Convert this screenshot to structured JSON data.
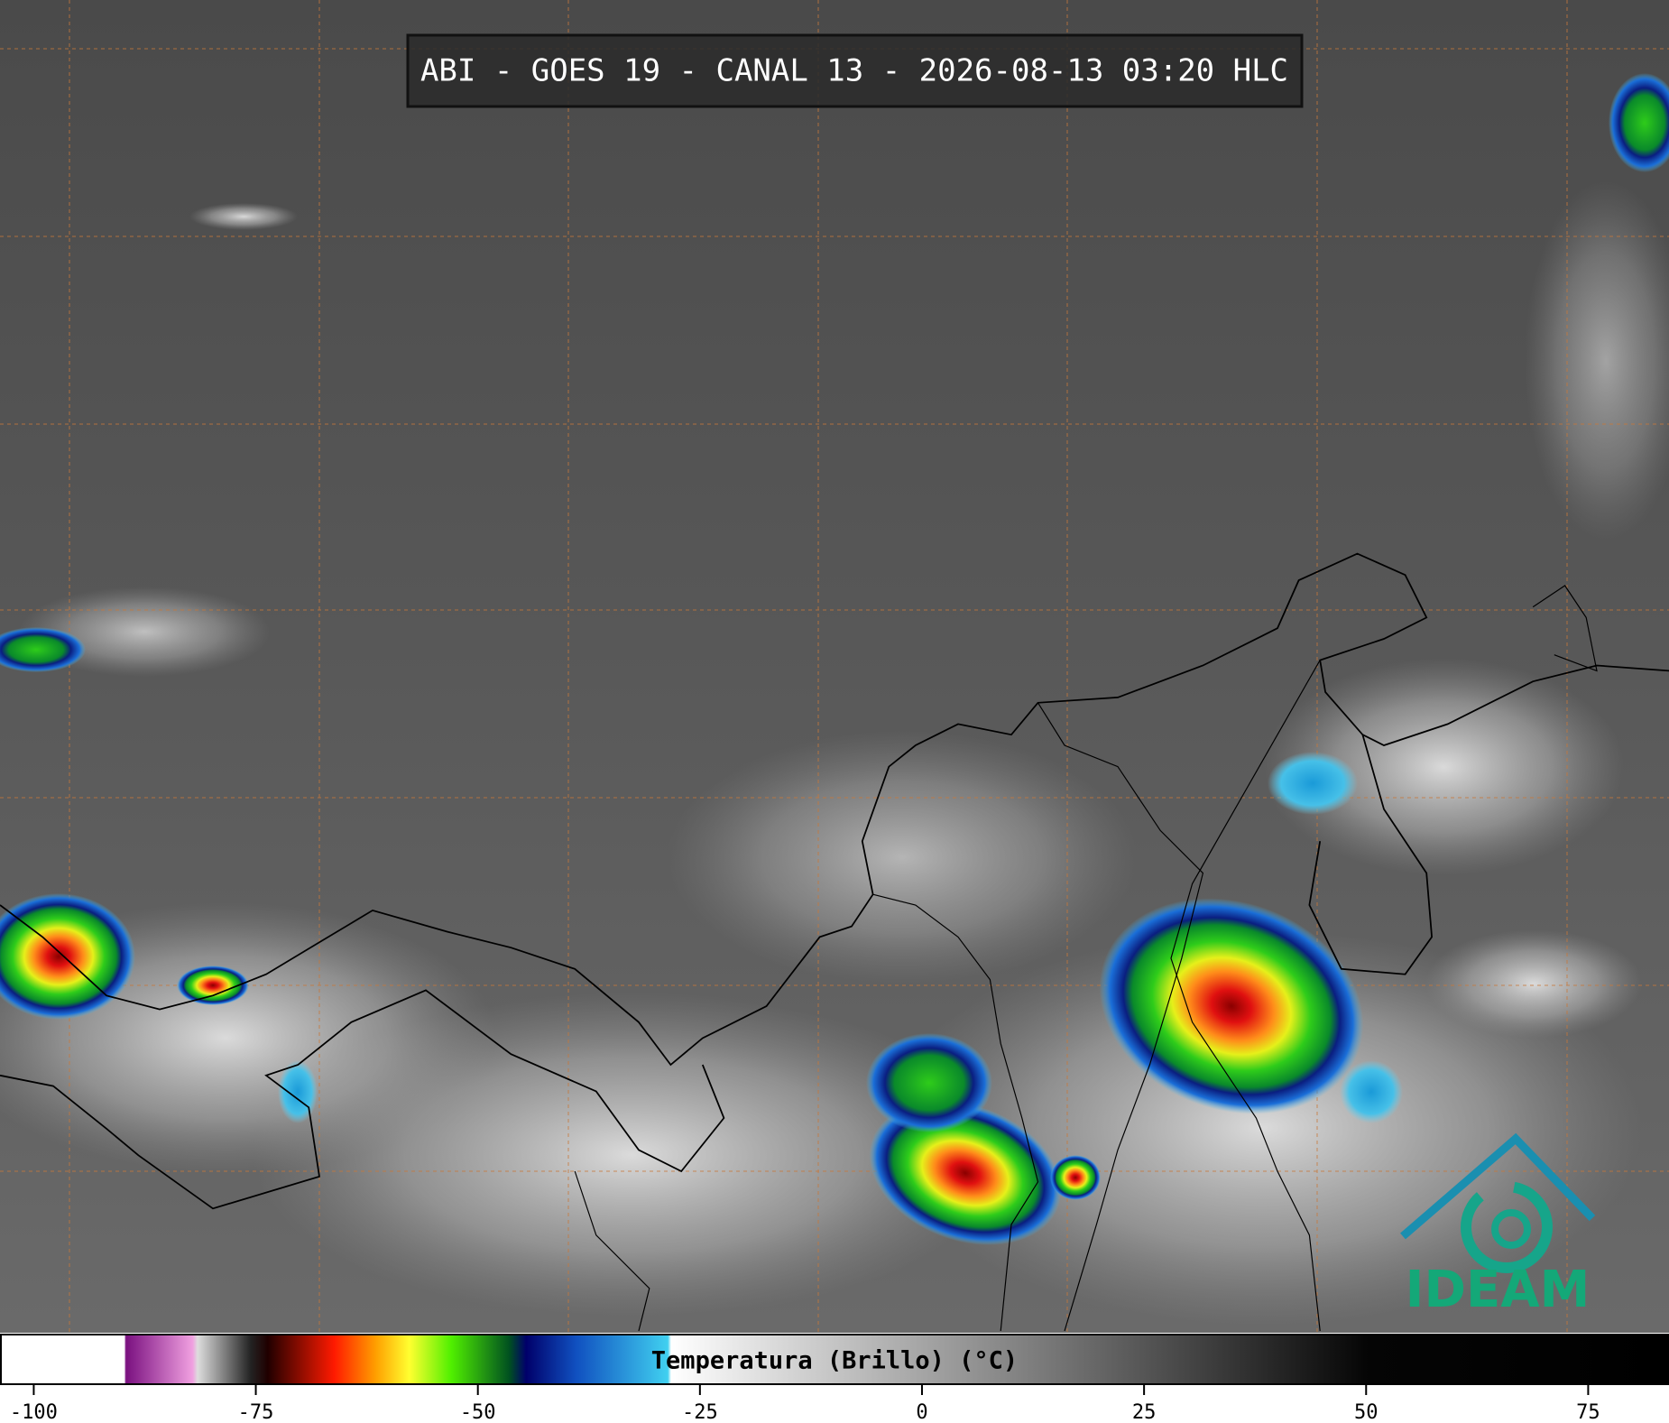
{
  "header": {
    "title": "ABI - GOES 19 - CANAL 13 - 2026-08-13 03:20 HLC"
  },
  "colorbar": {
    "label": "Temperatura (Brillo) (°C)",
    "lim": [
      -103.8,
      84.1
    ],
    "ticks": [
      -100,
      -75,
      -50,
      -25,
      0,
      25,
      50,
      75
    ]
  },
  "logo": {
    "text": "IDEAM"
  }
}
